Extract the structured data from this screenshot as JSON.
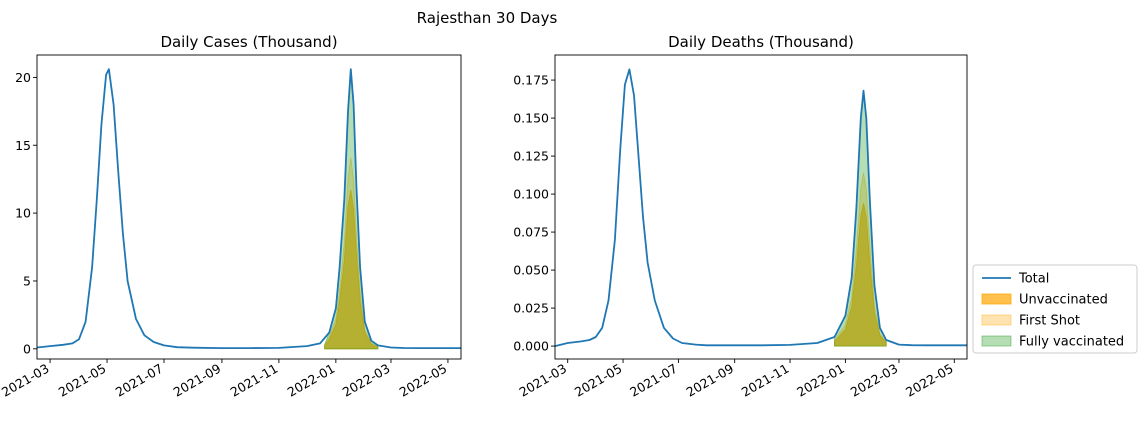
{
  "figure": {
    "title": "Rajesthan 30 Days"
  },
  "legend": {
    "placement": "right-bottom",
    "entries": [
      {
        "label": "Total",
        "kind": "line",
        "color": "#1f77b4"
      },
      {
        "label": "Unvaccinated",
        "kind": "patch",
        "color": "#ffa500",
        "alpha": 0.7
      },
      {
        "label": "First Shot",
        "kind": "patch",
        "color": "#ffa500",
        "alpha": 0.3
      },
      {
        "label": "Fully vaccinated",
        "kind": "patch",
        "color": "#2ca02c",
        "alpha": 0.35
      }
    ]
  },
  "chart_data": [
    {
      "type": "line",
      "title": "Daily Cases (Thousand)",
      "x_range": [
        "2021-02-15",
        "2022-05-15"
      ],
      "ylim": [
        -0.75,
        21.65
      ],
      "yticks": [
        0,
        5,
        10,
        15,
        20
      ],
      "ytick_labels": [
        "0",
        "5",
        "10",
        "15",
        "20"
      ],
      "xticks": [
        "2021-03-01",
        "2021-05-01",
        "2021-07-01",
        "2021-09-01",
        "2021-11-01",
        "2022-01-01",
        "2022-03-01",
        "2022-05-01"
      ],
      "xtick_labels": [
        "2021-03",
        "2021-05",
        "2021-07",
        "2021-09",
        "2021-11",
        "2022-01",
        "2022-03",
        "2022-05"
      ],
      "series": [
        {
          "name": "Total",
          "color": "#1f77b4",
          "x": [
            "2021-02-15",
            "2021-03-01",
            "2021-03-15",
            "2021-03-25",
            "2021-04-01",
            "2021-04-08",
            "2021-04-15",
            "2021-04-20",
            "2021-04-25",
            "2021-04-30",
            "2021-05-03",
            "2021-05-08",
            "2021-05-13",
            "2021-05-18",
            "2021-05-23",
            "2021-06-01",
            "2021-06-10",
            "2021-06-20",
            "2021-07-01",
            "2021-07-15",
            "2021-08-01",
            "2021-09-01",
            "2021-10-01",
            "2021-11-01",
            "2021-12-01",
            "2021-12-15",
            "2021-12-25",
            "2022-01-01",
            "2022-01-05",
            "2022-01-10",
            "2022-01-14",
            "2022-01-17",
            "2022-01-20",
            "2022-01-23",
            "2022-01-27",
            "2022-02-01",
            "2022-02-08",
            "2022-02-15",
            "2022-03-01",
            "2022-03-15",
            "2022-04-01",
            "2022-05-15"
          ],
          "values": [
            0.1,
            0.2,
            0.3,
            0.4,
            0.7,
            2.0,
            6.0,
            11.0,
            16.5,
            20.2,
            20.6,
            18.0,
            13.0,
            8.5,
            5.0,
            2.2,
            1.0,
            0.5,
            0.25,
            0.12,
            0.08,
            0.05,
            0.05,
            0.07,
            0.2,
            0.4,
            1.2,
            3.0,
            6.0,
            11.0,
            17.5,
            20.6,
            18.0,
            12.0,
            6.0,
            2.0,
            0.6,
            0.25,
            0.1,
            0.06,
            0.05,
            0.05
          ]
        }
      ],
      "areas": [
        {
          "name": "Unvaccinated",
          "color": "#ffa500",
          "alpha": 0.7,
          "x": [
            "2021-12-20",
            "2021-12-25",
            "2022-01-01",
            "2022-01-05",
            "2022-01-10",
            "2022-01-14",
            "2022-01-17",
            "2022-01-20",
            "2022-01-23",
            "2022-01-27",
            "2022-02-01",
            "2022-02-08",
            "2022-02-15"
          ],
          "values": [
            0.2,
            0.7,
            1.8,
            3.5,
            6.5,
            10.5,
            11.7,
            10.3,
            7.0,
            3.5,
            1.2,
            0.35,
            0.12
          ]
        },
        {
          "name": "First Shot",
          "color": "#ffa500",
          "alpha": 0.3,
          "x": [
            "2021-12-20",
            "2021-12-25",
            "2022-01-01",
            "2022-01-05",
            "2022-01-10",
            "2022-01-14",
            "2022-01-17",
            "2022-01-20",
            "2022-01-23",
            "2022-01-27",
            "2022-02-01",
            "2022-02-08",
            "2022-02-15"
          ],
          "values": [
            0.25,
            0.9,
            2.2,
            4.2,
            7.8,
            12.5,
            14.1,
            12.4,
            8.3,
            4.2,
            1.4,
            0.42,
            0.15
          ]
        },
        {
          "name": "Fully vaccinated",
          "color": "#2ca02c",
          "alpha": 0.35,
          "x": [
            "2021-12-20",
            "2021-12-25",
            "2022-01-01",
            "2022-01-05",
            "2022-01-10",
            "2022-01-14",
            "2022-01-17",
            "2022-01-20",
            "2022-01-23",
            "2022-01-27",
            "2022-02-01",
            "2022-02-08",
            "2022-02-15"
          ],
          "values": [
            0.3,
            1.2,
            3.0,
            6.0,
            11.0,
            17.5,
            20.6,
            18.0,
            12.0,
            6.0,
            2.0,
            0.6,
            0.2
          ]
        }
      ]
    },
    {
      "type": "line",
      "title": "Daily Deaths (Thousand)",
      "x_range": [
        "2021-02-15",
        "2022-05-15"
      ],
      "ylim": [
        -0.0085,
        0.1915
      ],
      "yticks": [
        0.0,
        0.025,
        0.05,
        0.075,
        0.1,
        0.125,
        0.15,
        0.175
      ],
      "ytick_labels": [
        "0.000",
        "0.025",
        "0.050",
        "0.075",
        "0.100",
        "0.125",
        "0.150",
        "0.175"
      ],
      "xticks": [
        "2021-03-01",
        "2021-05-01",
        "2021-07-01",
        "2021-09-01",
        "2021-11-01",
        "2022-01-01",
        "2022-03-01",
        "2022-05-01"
      ],
      "xtick_labels": [
        "2021-03",
        "2021-05",
        "2021-07",
        "2021-09",
        "2021-11",
        "2022-01",
        "2022-03",
        "2022-05"
      ],
      "series": [
        {
          "name": "Total",
          "color": "#1f77b4",
          "x": [
            "2021-02-15",
            "2021-03-01",
            "2021-03-15",
            "2021-03-25",
            "2021-04-01",
            "2021-04-08",
            "2021-04-15",
            "2021-04-22",
            "2021-04-28",
            "2021-05-03",
            "2021-05-08",
            "2021-05-13",
            "2021-05-18",
            "2021-05-23",
            "2021-05-28",
            "2021-06-05",
            "2021-06-15",
            "2021-06-25",
            "2021-07-05",
            "2021-07-20",
            "2021-08-01",
            "2021-09-01",
            "2021-10-01",
            "2021-11-01",
            "2021-12-01",
            "2021-12-20",
            "2022-01-01",
            "2022-01-08",
            "2022-01-13",
            "2022-01-18",
            "2022-01-21",
            "2022-01-24",
            "2022-01-28",
            "2022-02-02",
            "2022-02-08",
            "2022-02-15",
            "2022-03-01",
            "2022-03-15",
            "2022-04-01",
            "2022-05-15"
          ],
          "values": [
            0.0,
            0.002,
            0.003,
            0.004,
            0.006,
            0.012,
            0.03,
            0.07,
            0.13,
            0.172,
            0.182,
            0.165,
            0.125,
            0.085,
            0.055,
            0.03,
            0.012,
            0.005,
            0.002,
            0.001,
            0.0005,
            0.0005,
            0.0005,
            0.0008,
            0.002,
            0.006,
            0.02,
            0.045,
            0.09,
            0.15,
            0.168,
            0.15,
            0.095,
            0.04,
            0.012,
            0.004,
            0.001,
            0.0006,
            0.0005,
            0.0005
          ]
        }
      ],
      "areas": [
        {
          "name": "Unvaccinated",
          "color": "#ffa500",
          "alpha": 0.7,
          "x": [
            "2021-12-20",
            "2022-01-01",
            "2022-01-08",
            "2022-01-13",
            "2022-01-18",
            "2022-01-21",
            "2022-01-24",
            "2022-01-28",
            "2022-02-02",
            "2022-02-08",
            "2022-02-15"
          ],
          "values": [
            0.003,
            0.011,
            0.026,
            0.052,
            0.086,
            0.094,
            0.085,
            0.054,
            0.022,
            0.007,
            0.002
          ]
        },
        {
          "name": "First Shot",
          "color": "#ffa500",
          "alpha": 0.3,
          "x": [
            "2021-12-20",
            "2022-01-01",
            "2022-01-08",
            "2022-01-13",
            "2022-01-18",
            "2022-01-21",
            "2022-01-24",
            "2022-01-28",
            "2022-02-02",
            "2022-02-08",
            "2022-02-15"
          ],
          "values": [
            0.004,
            0.014,
            0.032,
            0.063,
            0.104,
            0.114,
            0.103,
            0.065,
            0.027,
            0.008,
            0.003
          ]
        },
        {
          "name": "Fully vaccinated",
          "color": "#2ca02c",
          "alpha": 0.35,
          "x": [
            "2021-12-20",
            "2022-01-01",
            "2022-01-08",
            "2022-01-13",
            "2022-01-18",
            "2022-01-21",
            "2022-01-24",
            "2022-01-28",
            "2022-02-02",
            "2022-02-08",
            "2022-02-15"
          ],
          "values": [
            0.006,
            0.02,
            0.045,
            0.09,
            0.15,
            0.168,
            0.15,
            0.095,
            0.04,
            0.012,
            0.004
          ]
        }
      ]
    }
  ]
}
